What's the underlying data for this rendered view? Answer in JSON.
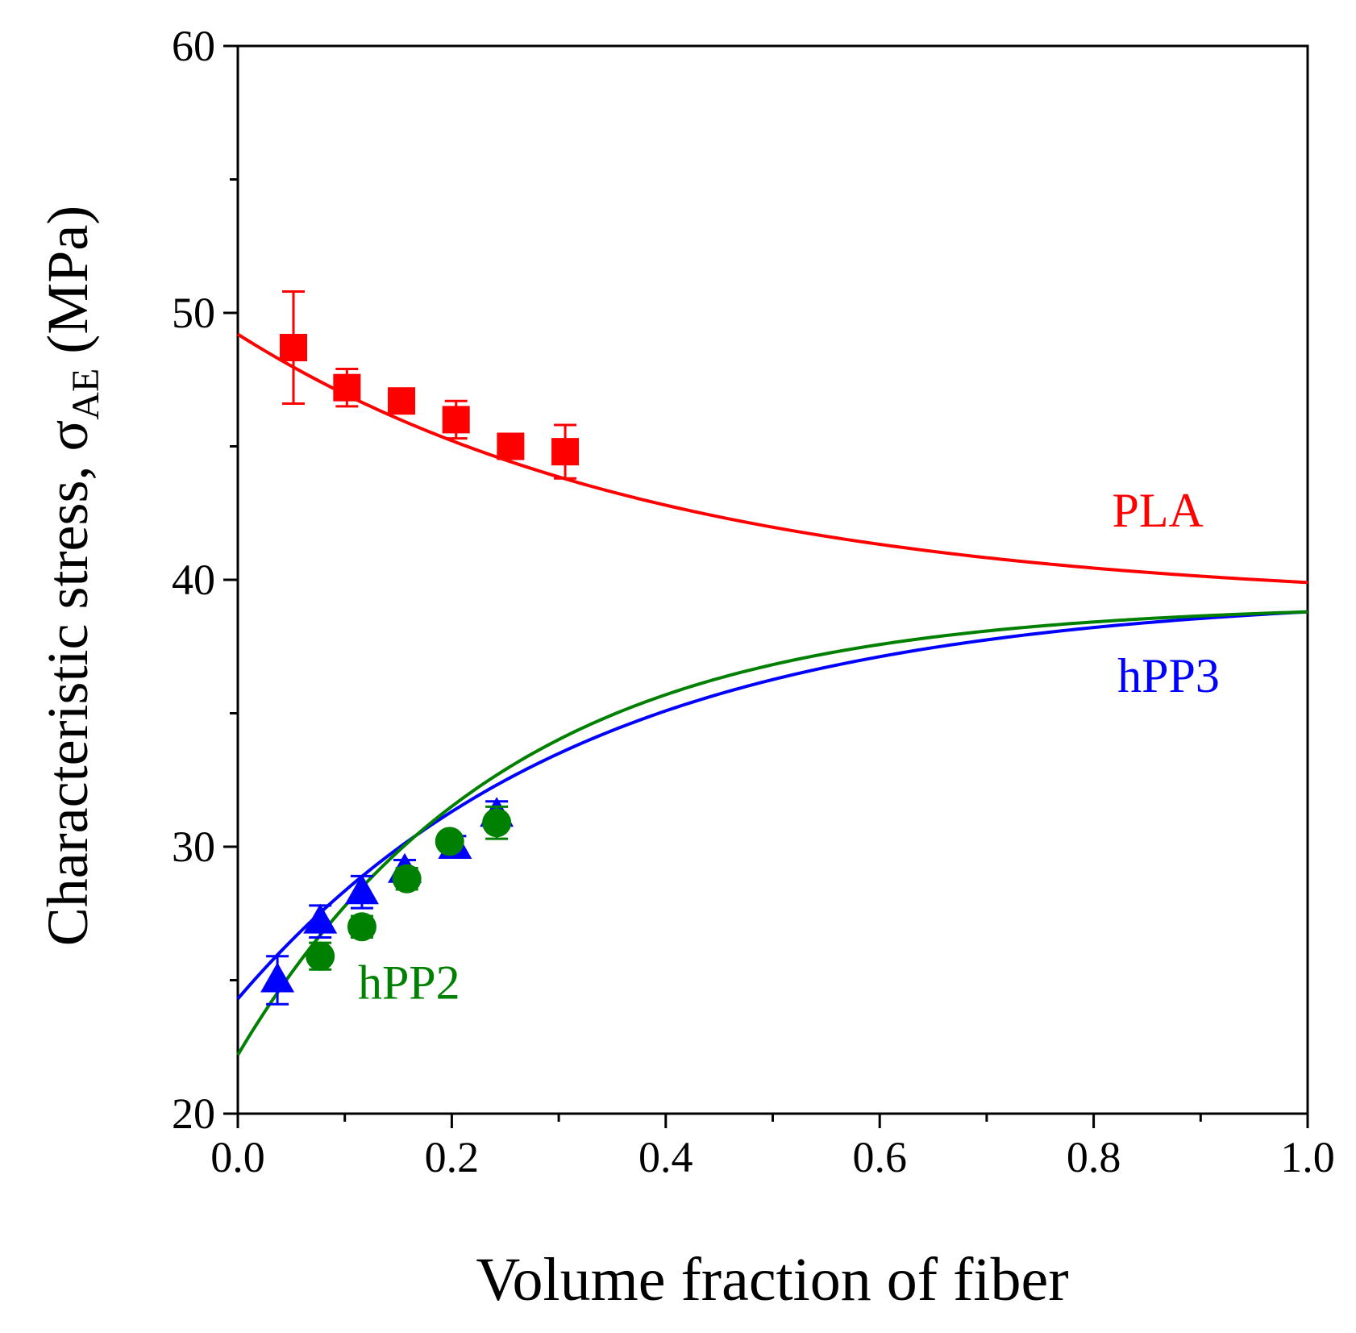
{
  "chart_data": {
    "type": "scatter",
    "title": "",
    "xlabel": "Volume fraction of fiber",
    "ylabel": {
      "main": "Characteristic stress, ",
      "symbol": "σ",
      "subscript": "AE",
      "units": " (MPa)"
    },
    "xlim": [
      0.0,
      1.0
    ],
    "ylim": [
      20,
      60
    ],
    "xticks": [
      "0.0",
      "0.2",
      "0.4",
      "0.6",
      "0.8",
      "1.0"
    ],
    "yticks": [
      "20",
      "30",
      "40",
      "50",
      "60"
    ],
    "grid": false,
    "series": [
      {
        "name": "PLA",
        "color": "#ff0000",
        "marker": "square",
        "points": [
          {
            "x": 0.052,
            "y": 48.7,
            "err": 2.1
          },
          {
            "x": 0.102,
            "y": 47.2,
            "err": 0.7
          },
          {
            "x": 0.153,
            "y": 46.7,
            "err": 0.3
          },
          {
            "x": 0.204,
            "y": 46.0,
            "err": 0.7
          },
          {
            "x": 0.255,
            "y": 45.0,
            "err": 0.3
          },
          {
            "x": 0.306,
            "y": 44.8,
            "err": 1.0
          }
        ],
        "fit": {
          "y0": 49.2,
          "y1": 39.9,
          "k": 2.5
        }
      },
      {
        "name": "hPP3",
        "color": "#0000ff",
        "marker": "triangle",
        "points": [
          {
            "x": 0.037,
            "y": 25.0,
            "err": 0.9
          },
          {
            "x": 0.077,
            "y": 27.2,
            "err": 0.6
          },
          {
            "x": 0.116,
            "y": 28.3,
            "err": 0.6
          },
          {
            "x": 0.156,
            "y": 29.1,
            "err": 0.4
          },
          {
            "x": 0.203,
            "y": 30.0,
            "err": 0.4
          },
          {
            "x": 0.242,
            "y": 31.2,
            "err": 0.5
          }
        ],
        "fit": {
          "y0": 24.3,
          "y1": 38.8,
          "k": 3.1
        }
      },
      {
        "name": "hPP2",
        "color": "#008000",
        "marker": "circle",
        "points": [
          {
            "x": 0.077,
            "y": 25.9,
            "err": 0.5
          },
          {
            "x": 0.116,
            "y": 27.0,
            "err": 0.4
          },
          {
            "x": 0.158,
            "y": 28.8,
            "err": 0.4
          },
          {
            "x": 0.198,
            "y": 30.2,
            "err": 0.3
          },
          {
            "x": 0.242,
            "y": 30.9,
            "err": 0.6
          }
        ],
        "fit": {
          "y0": 22.2,
          "y1": 38.8,
          "k": 4.0
        }
      }
    ],
    "annotations": [
      {
        "text": "PLA",
        "color": "#ff0000",
        "x": 0.86,
        "y": 42.0
      },
      {
        "text": "hPP3",
        "color": "#0000ff",
        "x": 0.87,
        "y": 35.8
      },
      {
        "text": "hPP2",
        "color": "#008000",
        "x": 0.16,
        "y": 24.3
      }
    ]
  }
}
